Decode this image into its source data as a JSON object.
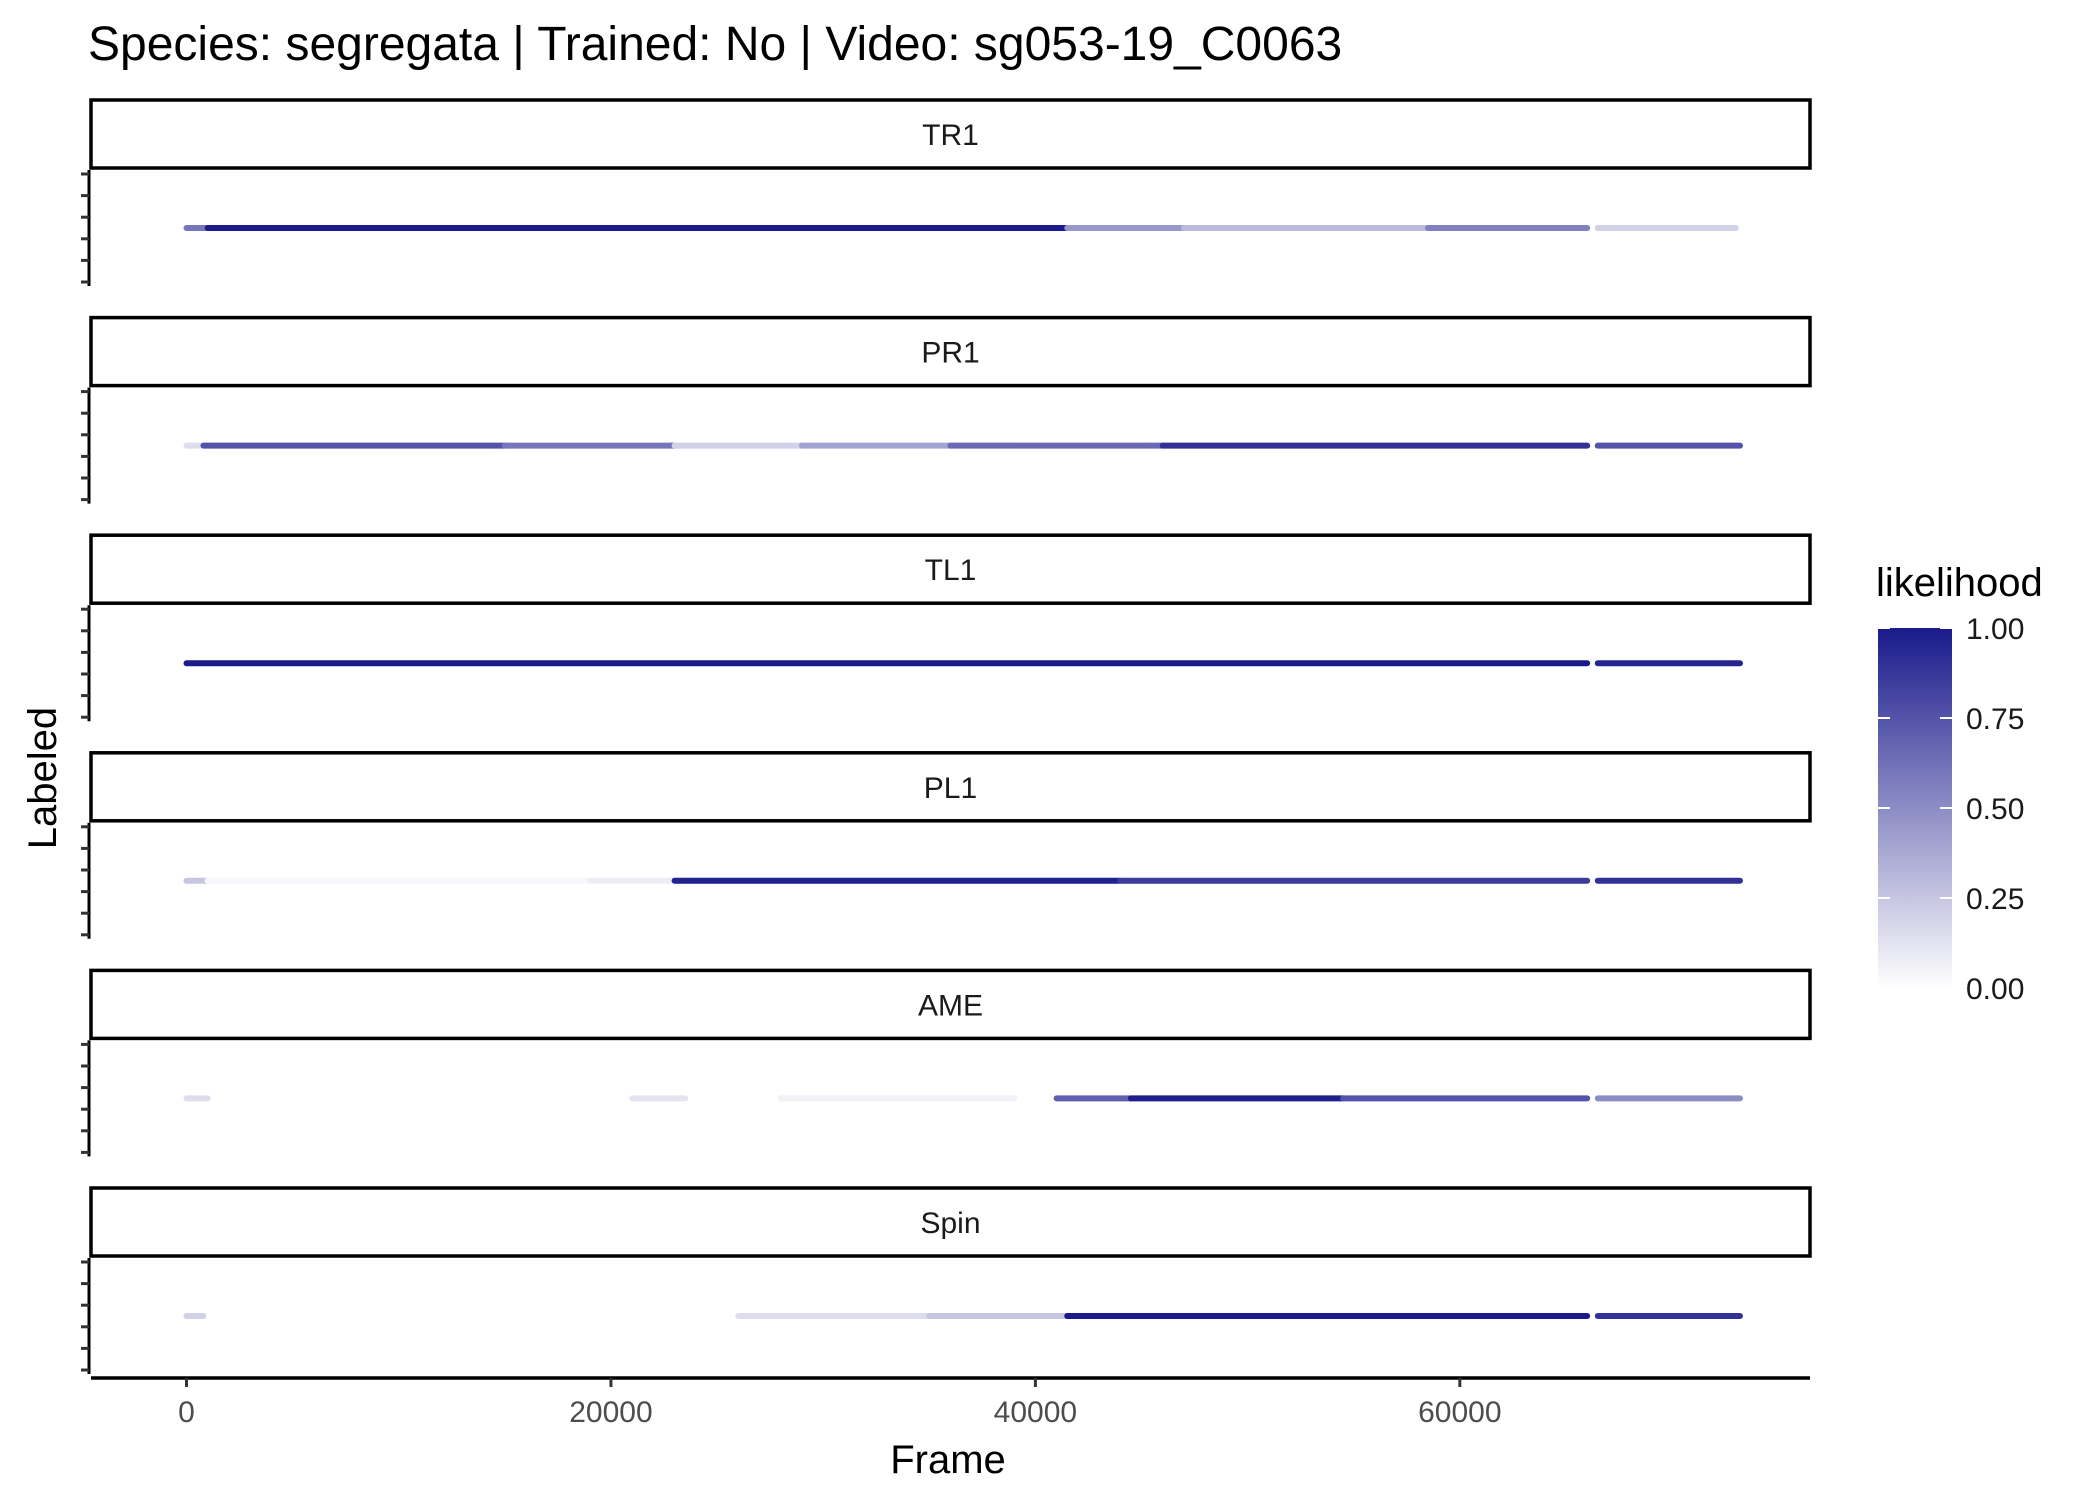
{
  "chart_data": {
    "type": "scatter",
    "title": "Species: segregata | Trained: No | Video: sg053-19_C0063",
    "xlabel": "Frame",
    "ylabel": "Labeled",
    "xlim": [
      -4500,
      76500
    ],
    "x_ticks": [
      0,
      20000,
      40000,
      60000
    ],
    "x_tick_labels": [
      "0",
      "20000",
      "40000",
      "60000"
    ],
    "grid": false,
    "facets": [
      {
        "name": "TR1",
        "segments": [
          {
            "x": [
              0,
              1000
            ],
            "likelihood": 0.6
          },
          {
            "x": [
              1000,
              41500
            ],
            "likelihood": 1.0
          },
          {
            "x": [
              41500,
              47000
            ],
            "likelihood": 0.45
          },
          {
            "x": [
              47000,
              58500
            ],
            "likelihood": 0.3
          },
          {
            "x": [
              58500,
              66000
            ],
            "likelihood": 0.55
          },
          {
            "x": [
              66500,
              73000
            ],
            "likelihood": 0.2
          }
        ]
      },
      {
        "name": "PR1",
        "segments": [
          {
            "x": [
              0,
              800
            ],
            "likelihood": 0.15
          },
          {
            "x": [
              800,
              15000
            ],
            "likelihood": 0.75
          },
          {
            "x": [
              15000,
              23000
            ],
            "likelihood": 0.6
          },
          {
            "x": [
              23000,
              29000
            ],
            "likelihood": 0.2
          },
          {
            "x": [
              29000,
              36000
            ],
            "likelihood": 0.4
          },
          {
            "x": [
              36000,
              46000
            ],
            "likelihood": 0.65
          },
          {
            "x": [
              46000,
              66000
            ],
            "likelihood": 0.9
          },
          {
            "x": [
              66500,
              73200
            ],
            "likelihood": 0.75
          }
        ]
      },
      {
        "name": "TL1",
        "segments": [
          {
            "x": [
              0,
              66000
            ],
            "likelihood": 1.0
          },
          {
            "x": [
              66500,
              73200
            ],
            "likelihood": 0.95
          }
        ]
      },
      {
        "name": "PL1",
        "segments": [
          {
            "x": [
              0,
              1000
            ],
            "likelihood": 0.25
          },
          {
            "x": [
              1000,
              19000
            ],
            "likelihood": 0.03
          },
          {
            "x": [
              19000,
              23000
            ],
            "likelihood": 0.08
          },
          {
            "x": [
              23000,
              44000
            ],
            "likelihood": 0.97
          },
          {
            "x": [
              44000,
              66000
            ],
            "likelihood": 0.85
          },
          {
            "x": [
              66500,
              73200
            ],
            "likelihood": 0.9
          }
        ]
      },
      {
        "name": "AME",
        "segments": [
          {
            "x": [
              0,
              1000
            ],
            "likelihood": 0.15
          },
          {
            "x": [
              21000,
              23500
            ],
            "likelihood": 0.12
          },
          {
            "x": [
              28000,
              39000
            ],
            "likelihood": 0.06
          },
          {
            "x": [
              41000,
              44500
            ],
            "likelihood": 0.7
          },
          {
            "x": [
              44500,
              54500
            ],
            "likelihood": 0.98
          },
          {
            "x": [
              54500,
              66000
            ],
            "likelihood": 0.75
          },
          {
            "x": [
              66500,
              73200
            ],
            "likelihood": 0.5
          }
        ]
      },
      {
        "name": "Spin",
        "segments": [
          {
            "x": [
              0,
              800
            ],
            "likelihood": 0.2
          },
          {
            "x": [
              26000,
              35000
            ],
            "likelihood": 0.15
          },
          {
            "x": [
              35000,
              41500
            ],
            "likelihood": 0.25
          },
          {
            "x": [
              41500,
              66000
            ],
            "likelihood": 1.0
          },
          {
            "x": [
              66500,
              73200
            ],
            "likelihood": 0.9
          }
        ]
      }
    ],
    "legend": {
      "title": "likelihood",
      "placement": "right",
      "ticks": [
        1.0,
        0.75,
        0.5,
        0.25,
        0.0
      ],
      "tick_labels": [
        "1.00",
        "0.75",
        "0.50",
        "0.25",
        "0.00"
      ],
      "color_low": "#ffffff",
      "color_high": "#1a1a8c"
    }
  }
}
